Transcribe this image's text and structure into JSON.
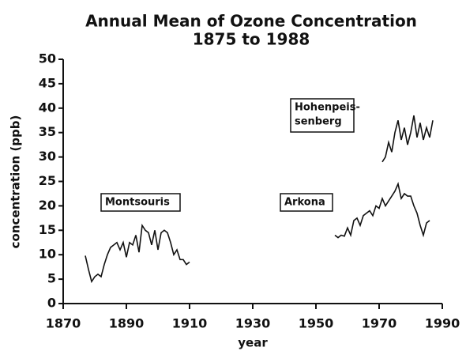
{
  "chart_data": {
    "type": "line",
    "title": "Annual Mean of Ozone Concentration",
    "subtitle": "1875 to 1988",
    "x_label": "year",
    "y_label": "concentration (ppb)",
    "xlim": [
      1870,
      1990
    ],
    "xticks": [
      1870,
      1890,
      1910,
      1930,
      1950,
      1970,
      1990
    ],
    "ylim": [
      0,
      50
    ],
    "yticks": [
      0,
      5,
      10,
      15,
      20,
      25,
      30,
      35,
      40,
      45,
      50
    ],
    "annotations": [
      [
        "Montsouris"
      ],
      [
        "Arkona"
      ],
      [
        "Hohenpeis-",
        "senberg"
      ]
    ],
    "series": [
      {
        "color": "#111111",
        "x": [
          1877,
          1878,
          1879,
          1880,
          1881,
          1882,
          1883,
          1884,
          1885,
          1886,
          1887,
          1888,
          1889,
          1890,
          1891,
          1892,
          1893,
          1894,
          1895,
          1896,
          1897,
          1898,
          1899,
          1900,
          1901,
          1902,
          1903,
          1904,
          1905,
          1906,
          1907,
          1908,
          1909,
          1910
        ],
        "values": [
          9.8,
          7,
          4.5,
          5.5,
          6,
          5.5,
          8,
          10,
          11.5,
          12,
          12.5,
          11,
          12.5,
          9.5,
          12.5,
          12,
          14,
          10.5,
          16,
          15,
          14.5,
          12,
          15,
          11,
          14.5,
          15,
          14.5,
          12.5,
          10,
          11,
          9,
          9,
          8,
          8.5
        ]
      },
      {
        "color": "#111111",
        "x": [
          1956,
          1957,
          1958,
          1959,
          1960,
          1961,
          1962,
          1963,
          1964,
          1965,
          1966,
          1967,
          1968,
          1969,
          1970,
          1971,
          1972,
          1973,
          1974,
          1975,
          1976,
          1977,
          1978,
          1979,
          1980,
          1981,
          1982,
          1983,
          1984,
          1985,
          1986
        ],
        "values": [
          14,
          13.5,
          14,
          13.8,
          15.5,
          14,
          17,
          17.5,
          16,
          18,
          18.5,
          19,
          18,
          20,
          19.5,
          21.5,
          20,
          21,
          22,
          23,
          24.5,
          21.5,
          22.5,
          22,
          22,
          20,
          18.5,
          16,
          14,
          16.5,
          17
        ]
      },
      {
        "color": "#111111",
        "x": [
          1971,
          1972,
          1973,
          1974,
          1975,
          1976,
          1977,
          1978,
          1979,
          1980,
          1981,
          1982,
          1983,
          1984,
          1985,
          1986,
          1987
        ],
        "values": [
          29,
          30,
          33,
          31,
          35,
          37.5,
          33.5,
          36,
          32.5,
          35,
          38.5,
          34,
          37,
          33.5,
          36,
          34,
          37.5
        ]
      }
    ]
  }
}
